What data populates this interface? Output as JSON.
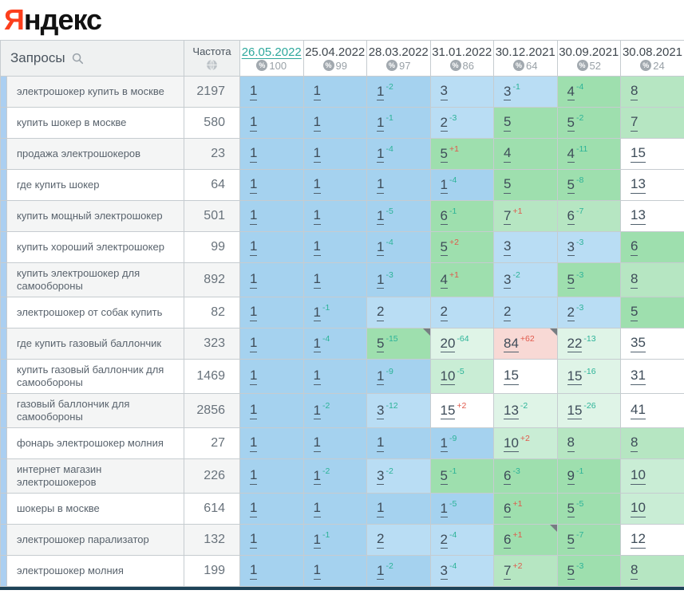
{
  "logo": {
    "first_letter": "Я",
    "rest": "ндекс"
  },
  "table": {
    "queries_header": "Запросы",
    "frequency_header": "Частота",
    "columns": [
      {
        "date": "26.05.2022",
        "count": "100",
        "active": true
      },
      {
        "date": "25.04.2022",
        "count": "99",
        "active": false
      },
      {
        "date": "28.03.2022",
        "count": "97",
        "active": false
      },
      {
        "date": "31.01.2022",
        "count": "86",
        "active": false
      },
      {
        "date": "30.12.2021",
        "count": "64",
        "active": false
      },
      {
        "date": "30.09.2021",
        "count": "52",
        "active": false
      },
      {
        "date": "30.08.2021",
        "count": "24",
        "active": false
      }
    ],
    "rows": [
      {
        "query": "электрошокер купить в москве",
        "frequency": "2197",
        "cells": [
          {
            "pos": "1",
            "bg": "b1"
          },
          {
            "pos": "1",
            "bg": "b1"
          },
          {
            "pos": "1",
            "delta": "-2",
            "bg": "b1"
          },
          {
            "pos": "3",
            "bg": "b2"
          },
          {
            "pos": "3",
            "delta": "-1",
            "bg": "b2"
          },
          {
            "pos": "4",
            "delta": "-4",
            "bg": "g1"
          },
          {
            "pos": "8",
            "bg": "g2"
          }
        ]
      },
      {
        "query": "купить шокер в москве",
        "frequency": "580",
        "cells": [
          {
            "pos": "1",
            "bg": "b1"
          },
          {
            "pos": "1",
            "bg": "b1"
          },
          {
            "pos": "1",
            "delta": "-1",
            "bg": "b1"
          },
          {
            "pos": "2",
            "delta": "-3",
            "bg": "b2"
          },
          {
            "pos": "5",
            "bg": "g1"
          },
          {
            "pos": "5",
            "delta": "-2",
            "bg": "g1"
          },
          {
            "pos": "7",
            "bg": "g2"
          }
        ]
      },
      {
        "query": "продажа электрошокеров",
        "frequency": "23",
        "cells": [
          {
            "pos": "1",
            "bg": "b1"
          },
          {
            "pos": "1",
            "bg": "b1"
          },
          {
            "pos": "1",
            "delta": "-4",
            "bg": "b1"
          },
          {
            "pos": "5",
            "delta": "+1",
            "bg": "g1"
          },
          {
            "pos": "4",
            "bg": "g1"
          },
          {
            "pos": "4",
            "delta": "-11",
            "bg": "g1"
          },
          {
            "pos": "15",
            "bg": "w"
          }
        ]
      },
      {
        "query": "где купить шокер",
        "frequency": "64",
        "cells": [
          {
            "pos": "1",
            "bg": "b1"
          },
          {
            "pos": "1",
            "bg": "b1"
          },
          {
            "pos": "1",
            "bg": "b1"
          },
          {
            "pos": "1",
            "delta": "-4",
            "bg": "b1"
          },
          {
            "pos": "5",
            "bg": "g1"
          },
          {
            "pos": "5",
            "delta": "-8",
            "bg": "g1"
          },
          {
            "pos": "13",
            "bg": "w"
          }
        ]
      },
      {
        "query": "купить мощный электрошокер",
        "frequency": "501",
        "cells": [
          {
            "pos": "1",
            "bg": "b1"
          },
          {
            "pos": "1",
            "bg": "b1"
          },
          {
            "pos": "1",
            "delta": "-5",
            "bg": "b1"
          },
          {
            "pos": "6",
            "delta": "-1",
            "bg": "g1"
          },
          {
            "pos": "7",
            "delta": "+1",
            "bg": "g2"
          },
          {
            "pos": "6",
            "delta": "-7",
            "bg": "g2"
          },
          {
            "pos": "13",
            "bg": "w"
          }
        ]
      },
      {
        "query": "купить хороший электрошокер",
        "frequency": "99",
        "cells": [
          {
            "pos": "1",
            "bg": "b1"
          },
          {
            "pos": "1",
            "bg": "b1"
          },
          {
            "pos": "1",
            "delta": "-4",
            "bg": "b1"
          },
          {
            "pos": "5",
            "delta": "+2",
            "bg": "g1"
          },
          {
            "pos": "3",
            "bg": "b2"
          },
          {
            "pos": "3",
            "delta": "-3",
            "bg": "b2"
          },
          {
            "pos": "6",
            "bg": "g1"
          }
        ]
      },
      {
        "query": "купить электрошокер для самообороны",
        "frequency": "892",
        "cells": [
          {
            "pos": "1",
            "bg": "b1"
          },
          {
            "pos": "1",
            "bg": "b1"
          },
          {
            "pos": "1",
            "delta": "-3",
            "bg": "b1"
          },
          {
            "pos": "4",
            "delta": "+1",
            "bg": "g1"
          },
          {
            "pos": "3",
            "delta": "-2",
            "bg": "b2"
          },
          {
            "pos": "5",
            "delta": "-3",
            "bg": "g1"
          },
          {
            "pos": "8",
            "bg": "g2"
          }
        ]
      },
      {
        "query": "электрошокер от собак купить",
        "frequency": "82",
        "cells": [
          {
            "pos": "1",
            "bg": "b1"
          },
          {
            "pos": "1",
            "delta": "-1",
            "bg": "b1"
          },
          {
            "pos": "2",
            "bg": "b2"
          },
          {
            "pos": "2",
            "bg": "b2"
          },
          {
            "pos": "2",
            "bg": "b2"
          },
          {
            "pos": "2",
            "delta": "-3",
            "bg": "b2"
          },
          {
            "pos": "5",
            "bg": "g1"
          }
        ]
      },
      {
        "query": "где купить газовый баллончик",
        "frequency": "323",
        "cells": [
          {
            "pos": "1",
            "bg": "b1"
          },
          {
            "pos": "1",
            "delta": "-4",
            "bg": "b1"
          },
          {
            "pos": "5",
            "delta": "-15",
            "bg": "g1",
            "corner": true
          },
          {
            "pos": "20",
            "delta": "-64",
            "bg": "g4"
          },
          {
            "pos": "84",
            "delta": "+62",
            "bg": "p",
            "corner": true
          },
          {
            "pos": "22",
            "delta": "-13",
            "bg": "g4"
          },
          {
            "pos": "35",
            "bg": "w"
          }
        ]
      },
      {
        "query": "купить газовый баллончик для самообороны",
        "frequency": "1469",
        "cells": [
          {
            "pos": "1",
            "bg": "b1"
          },
          {
            "pos": "1",
            "bg": "b1"
          },
          {
            "pos": "1",
            "delta": "-9",
            "bg": "b1"
          },
          {
            "pos": "10",
            "delta": "-5",
            "bg": "g3"
          },
          {
            "pos": "15",
            "bg": "w"
          },
          {
            "pos": "15",
            "delta": "-16",
            "bg": "g4"
          },
          {
            "pos": "31",
            "bg": "w"
          }
        ]
      },
      {
        "query": "газовый баллончик для самообороны",
        "frequency": "2856",
        "cells": [
          {
            "pos": "1",
            "bg": "b1"
          },
          {
            "pos": "1",
            "delta": "-2",
            "bg": "b1"
          },
          {
            "pos": "3",
            "delta": "-12",
            "bg": "b2"
          },
          {
            "pos": "15",
            "delta": "+2",
            "bg": "w"
          },
          {
            "pos": "13",
            "delta": "-2",
            "bg": "g4"
          },
          {
            "pos": "15",
            "delta": "-26",
            "bg": "g4"
          },
          {
            "pos": "41",
            "bg": "w"
          }
        ]
      },
      {
        "query": "фонарь электрошокер молния",
        "frequency": "27",
        "cells": [
          {
            "pos": "1",
            "bg": "b1"
          },
          {
            "pos": "1",
            "bg": "b1"
          },
          {
            "pos": "1",
            "bg": "b1"
          },
          {
            "pos": "1",
            "delta": "-9",
            "bg": "b1"
          },
          {
            "pos": "10",
            "delta": "+2",
            "bg": "g3"
          },
          {
            "pos": "8",
            "bg": "g2"
          },
          {
            "pos": "8",
            "bg": "g2"
          }
        ]
      },
      {
        "query": "интернет магазин электрошокеров",
        "frequency": "226",
        "cells": [
          {
            "pos": "1",
            "bg": "b1"
          },
          {
            "pos": "1",
            "delta": "-2",
            "bg": "b1"
          },
          {
            "pos": "3",
            "delta": "-2",
            "bg": "b2"
          },
          {
            "pos": "5",
            "delta": "-1",
            "bg": "g1"
          },
          {
            "pos": "6",
            "delta": "-3",
            "bg": "g1"
          },
          {
            "pos": "9",
            "delta": "-1",
            "bg": "g1"
          },
          {
            "pos": "10",
            "bg": "g3"
          }
        ]
      },
      {
        "query": "шокеры в москве",
        "frequency": "614",
        "cells": [
          {
            "pos": "1",
            "bg": "b1"
          },
          {
            "pos": "1",
            "bg": "b1"
          },
          {
            "pos": "1",
            "bg": "b1"
          },
          {
            "pos": "1",
            "delta": "-5",
            "bg": "b1"
          },
          {
            "pos": "6",
            "delta": "+1",
            "bg": "g1"
          },
          {
            "pos": "5",
            "delta": "-5",
            "bg": "g1"
          },
          {
            "pos": "10",
            "bg": "g3"
          }
        ]
      },
      {
        "query": "электрошокер парализатор",
        "frequency": "132",
        "cells": [
          {
            "pos": "1",
            "bg": "b1"
          },
          {
            "pos": "1",
            "delta": "-1",
            "bg": "b1"
          },
          {
            "pos": "2",
            "bg": "b2"
          },
          {
            "pos": "2",
            "delta": "-4",
            "bg": "b2"
          },
          {
            "pos": "6",
            "delta": "+1",
            "bg": "g1",
            "corner": true
          },
          {
            "pos": "5",
            "delta": "-7",
            "bg": "g1"
          },
          {
            "pos": "12",
            "bg": "w"
          }
        ]
      },
      {
        "query": "электрошокер молния",
        "frequency": "199",
        "cells": [
          {
            "pos": "1",
            "bg": "b1"
          },
          {
            "pos": "1",
            "bg": "b1"
          },
          {
            "pos": "1",
            "delta": "-2",
            "bg": "b1"
          },
          {
            "pos": "3",
            "delta": "-4",
            "bg": "b2"
          },
          {
            "pos": "7",
            "delta": "+2",
            "bg": "g2"
          },
          {
            "pos": "5",
            "delta": "-3",
            "bg": "g1"
          },
          {
            "pos": "8",
            "bg": "g2"
          }
        ]
      }
    ]
  },
  "colors": {
    "b1": "#a5d2ef",
    "b2": "#b9ddf4",
    "g1": "#9edfae",
    "g2": "#b6e6c2",
    "g3": "#c9edd5",
    "g4": "#dff4e7",
    "p": "#f8d9d5",
    "w": "#ffffff",
    "delta_down": "#2cb398",
    "delta_up": "#e0584a",
    "active_date": "#2da89c",
    "logo_red": "#fc3f1d",
    "bottom_bar": "#1d4257"
  }
}
